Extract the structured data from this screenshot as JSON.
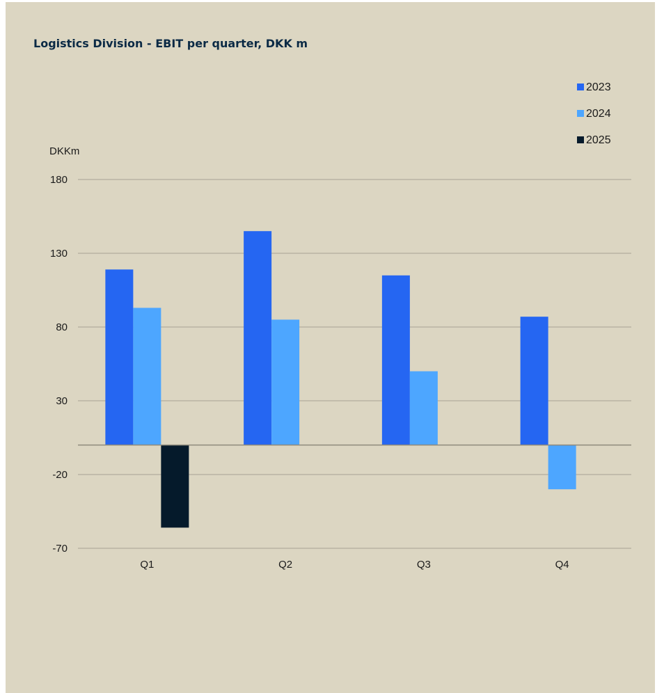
{
  "chart_data": {
    "type": "bar",
    "title": "Logistics Division - EBIT per quarter, DKK m",
    "ylabel": "DKKm",
    "xlabel": "",
    "categories": [
      "Q1",
      "Q2",
      "Q3",
      "Q4"
    ],
    "series": [
      {
        "name": "2023",
        "color": "#2566f2",
        "values": [
          119,
          145,
          115,
          87
        ]
      },
      {
        "name": "2024",
        "color": "#4da6ff",
        "values": [
          93,
          85,
          50,
          -30
        ]
      },
      {
        "name": "2025",
        "color": "#051a2b",
        "values": [
          -56,
          null,
          null,
          null
        ]
      }
    ],
    "yticks": [
      "180",
      "130",
      "80",
      "30",
      "-20",
      "-70"
    ],
    "ytick_values": [
      180,
      130,
      80,
      30,
      -20,
      -70
    ],
    "ylim": [
      -70,
      180
    ],
    "grid": true,
    "legend_position": "top-right"
  }
}
